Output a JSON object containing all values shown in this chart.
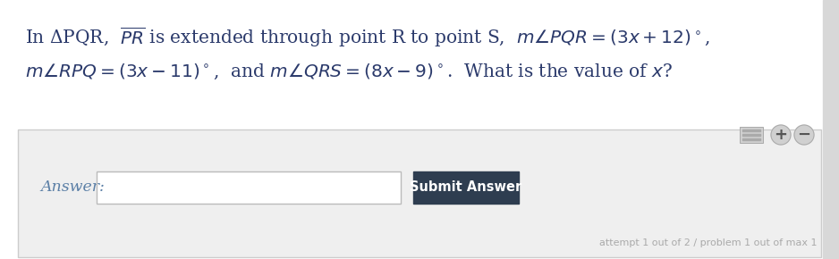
{
  "bg_color": "#ffffff",
  "panel_bg_color": "#efefef",
  "panel_border_color": "#cccccc",
  "main_text_color": "#2b3a6b",
  "answer_label_color": "#5b7fa6",
  "submit_btn_color": "#2e3d50",
  "submit_btn_text_color": "#ffffff",
  "attempt_text_color": "#aaaaaa",
  "input_border_color": "#bbbbbb",
  "answer_label": "Answer:",
  "submit_btn_text": "Submit Answer",
  "attempt_text": "attempt 1 out of 2 / problem 1 out of max 1",
  "line1_fontsize": 14.5,
  "line2_fontsize": 14.5,
  "fig_width": 9.38,
  "fig_height": 2.9,
  "dpi": 100
}
